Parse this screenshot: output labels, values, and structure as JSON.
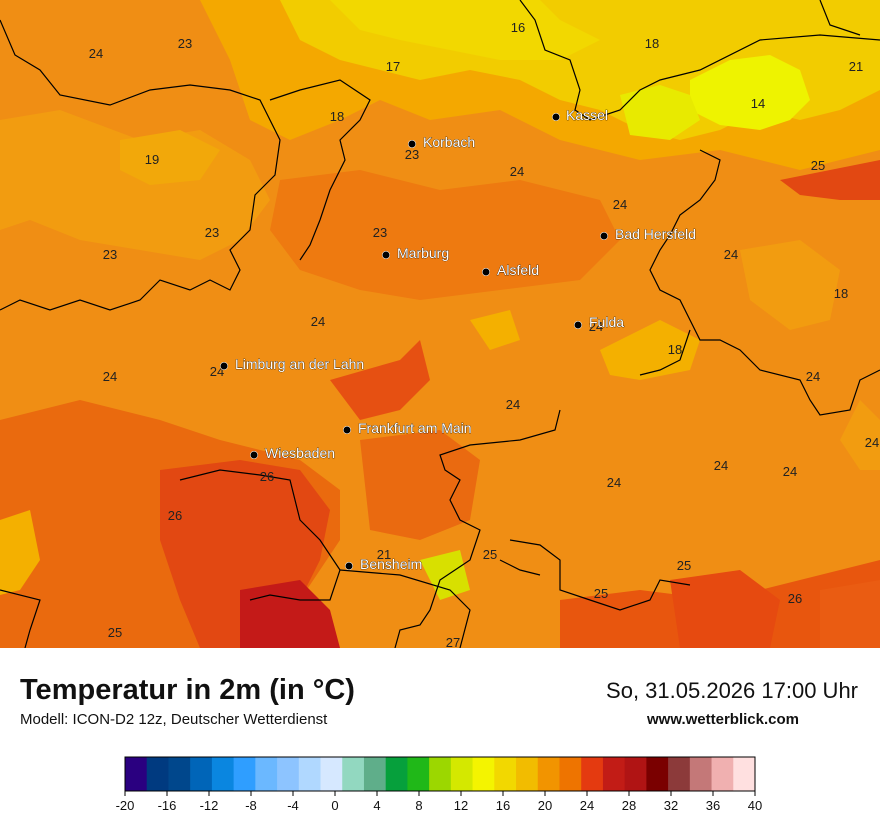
{
  "title": "Temperatur in 2m (in °C)",
  "model": "Modell: ICON-D2 12z, Deutscher Wetterdienst",
  "datetime": "So, 31.05.2026 17:00 Uhr",
  "website": "www.wetterblick.com",
  "cities": [
    {
      "name": "Kassel"
    },
    {
      "name": "Korbach"
    },
    {
      "name": "Bad Hersfeld"
    },
    {
      "name": "Marburg"
    },
    {
      "name": "Alsfeld"
    },
    {
      "name": "Fulda"
    },
    {
      "name": "Limburg an der Lahn"
    },
    {
      "name": "Frankfurt am Main"
    },
    {
      "name": "Wiesbaden"
    },
    {
      "name": "Bensheim"
    }
  ],
  "temperature_values": [
    "16",
    "18",
    "24",
    "23",
    "17",
    "21",
    "14",
    "18",
    "23",
    "19",
    "24",
    "25",
    "24",
    "23",
    "23",
    "23",
    "24",
    "18",
    "24",
    "24",
    "24",
    "18",
    "24",
    "24",
    "24",
    "24",
    "24",
    "24",
    "24",
    "26",
    "26",
    "21",
    "25",
    "25",
    "25",
    "26",
    "25",
    "27"
  ],
  "legend": {
    "ticks": [
      "-20",
      "-16",
      "-12",
      "-8",
      "-4",
      "0",
      "4",
      "8",
      "12",
      "16",
      "20",
      "24",
      "28",
      "32",
      "36",
      "40"
    ],
    "colors": [
      "#2a0080",
      "#003a80",
      "#00478c",
      "#0065b8",
      "#0a86e0",
      "#2f9eff",
      "#6bb8ff",
      "#8dc4ff",
      "#b0d8ff",
      "#d6e8ff",
      "#92d8c0",
      "#5fae8a",
      "#06a03c",
      "#20b818",
      "#9cd700",
      "#d4e800",
      "#f4f400",
      "#f2d800",
      "#f2bc00",
      "#f29400",
      "#ee7400",
      "#e43a10",
      "#c21c16",
      "#b01414",
      "#7a0000",
      "#8c3a3a",
      "#c47878",
      "#f0b0b0",
      "#ffe0e0"
    ]
  },
  "colors": {
    "land_base": "#f08c14",
    "warm": "#e8650e",
    "hot": "#e03a12",
    "hottest": "#c01818",
    "cool": "#f4b400",
    "yellow": "#f2d400",
    "pale_yellow": "#eef000"
  }
}
